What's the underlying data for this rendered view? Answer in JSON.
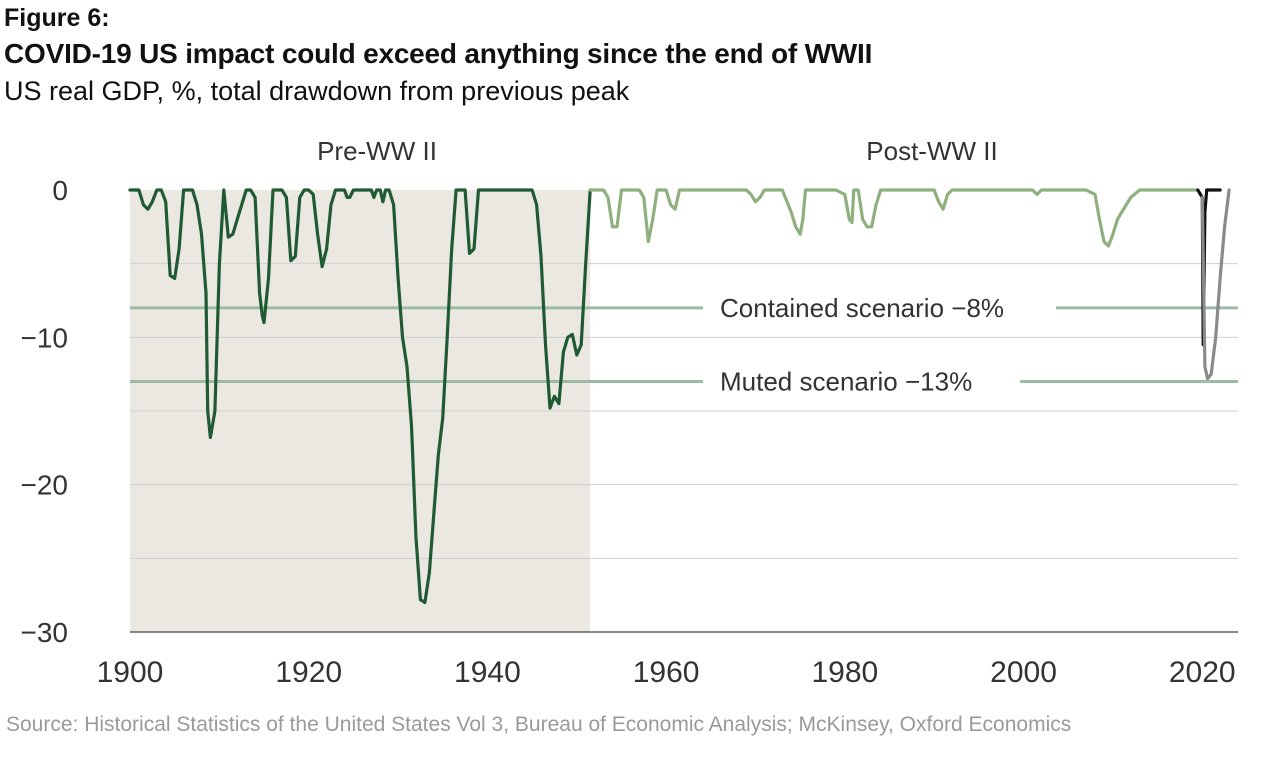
{
  "header": {
    "figure_label": "Figure 6:",
    "title": "COVID-19 US impact could exceed anything since the end of WWII",
    "subtitle": "US real GDP, %, total drawdown from previous peak"
  },
  "source": "Source: Historical Statistics of the United States Vol 3, Bureau of Economic Analysis; McKinsey, Oxford Economics",
  "colors": {
    "pre_ww2_line": "#1f5a33",
    "post_ww2_line": "#8fb07e",
    "shade": "#ebe8e2",
    "scenario_line": "#9dbba4",
    "recent_line": "#111111",
    "muted_path": "#8a8a8a",
    "grid": "#cfcfcf"
  },
  "chart_data": {
    "type": "line",
    "title": "COVID-19 US impact could exceed anything since the end of WWII",
    "ylabel": "US real GDP, %, total drawdown from previous peak",
    "xlim": [
      1900,
      2024
    ],
    "ylim": [
      -30,
      0
    ],
    "x_ticks": [
      "1900",
      "1920",
      "1940",
      "1960",
      "1980",
      "2000",
      "2020"
    ],
    "y_ticks": [
      "0",
      "−10",
      "−20",
      "−30"
    ],
    "grid": true,
    "regions": [
      {
        "label": "Pre-WW II",
        "from": 1900,
        "to": 1951.5,
        "shaded": true
      },
      {
        "label": "Post-WW II",
        "from": 1951.5,
        "to": 2024,
        "shaded": false
      }
    ],
    "reference_lines": [
      {
        "label": "Contained scenario −8%",
        "value": -8
      },
      {
        "label": "Muted scenario −13%",
        "value": -13
      }
    ],
    "series": [
      {
        "segment": "pre_ww2",
        "x": [
          1900,
          1901,
          1901.5,
          1902,
          1902.5,
          1903,
          1903.5,
          1904,
          1904.5,
          1905,
          1905.5,
          1906,
          1907,
          1907.5,
          1908,
          1908.5,
          1908.7,
          1909,
          1909.5,
          1910,
          1910.5,
          1911,
          1911.5,
          1912,
          1913,
          1913.5,
          1914,
          1914.5,
          1914.8,
          1915,
          1915.5,
          1916,
          1917,
          1917.5,
          1918,
          1918.5,
          1919,
          1919.5,
          1920,
          1920.5,
          1921,
          1921.5,
          1922,
          1922.5,
          1923,
          1924,
          1924.3,
          1924.6,
          1925,
          1926,
          1927,
          1927.3,
          1927.6,
          1928,
          1928.3,
          1928.6,
          1929,
          1929.5,
          1930,
          1930.5,
          1931,
          1931.5,
          1932,
          1932.5,
          1933,
          1933.5,
          1934,
          1934.5,
          1935,
          1935.5,
          1936,
          1936.5,
          1937,
          1937.5,
          1938,
          1938.5,
          1939,
          1940,
          1941,
          1942,
          1943,
          1944,
          1945,
          1945.5,
          1946,
          1946.5,
          1947,
          1947.5,
          1948,
          1948.5,
          1949,
          1949.5,
          1950,
          1950.5,
          1951,
          1951.5
        ],
        "values": [
          0,
          0,
          -1,
          -1.3,
          -0.8,
          0,
          0,
          -0.8,
          -5.8,
          -6,
          -4,
          0,
          0,
          -1,
          -3,
          -7,
          -15,
          -16.8,
          -15,
          -5,
          0,
          -3.2,
          -3,
          -2,
          0,
          0,
          -0.5,
          -7,
          -8.5,
          -9,
          -6,
          0,
          0,
          -0.5,
          -4.8,
          -4.5,
          -0.5,
          0,
          0,
          -0.3,
          -3,
          -5.2,
          -4,
          -1,
          0,
          0,
          -0.5,
          -0.5,
          0,
          0,
          0,
          -0.5,
          0,
          0,
          -0.8,
          0,
          0,
          -1,
          -6,
          -10,
          -12,
          -16,
          -23.5,
          -27.8,
          -28,
          -26,
          -22,
          -18,
          -15.5,
          -10,
          -4,
          0,
          0,
          0,
          -4.3,
          -4,
          0,
          0,
          0,
          0,
          0,
          0,
          0,
          -1,
          -4.5,
          -10.5,
          -14.8,
          -14,
          -14.5,
          -11,
          -10,
          -9.8,
          -11.2,
          -10.5,
          -5,
          0
        ]
      },
      {
        "segment": "post_ww2",
        "x": [
          1951.5,
          1953,
          1953.5,
          1954,
          1954.5,
          1955,
          1957,
          1957.5,
          1958,
          1958.5,
          1959,
          1960,
          1960.5,
          1961,
          1961.5,
          1962,
          1969,
          1969.5,
          1970,
          1970.5,
          1971,
          1973,
          1974,
          1974.5,
          1975,
          1975.3,
          1975.6,
          1976,
          1979,
          1980,
          1980.5,
          1980.8,
          1981,
          1981.5,
          1982,
          1982.5,
          1983,
          1983.5,
          1984,
          1990,
          1990.5,
          1991,
          1991.5,
          1992,
          2001,
          2001.5,
          2002,
          2007,
          2008,
          2008.5,
          2009,
          2009.5,
          2010,
          2010.5,
          2011,
          2011.5,
          2012,
          2013,
          2019.5
        ],
        "values": [
          0,
          0,
          -0.5,
          -2.5,
          -2.5,
          0,
          0,
          -0.5,
          -3.5,
          -2,
          0,
          0,
          -1,
          -1.3,
          0,
          0,
          0,
          -0.3,
          -0.8,
          -0.5,
          0,
          0,
          -1.5,
          -2.5,
          -3,
          -2,
          0,
          0,
          0,
          -0.3,
          -2,
          -2.2,
          0,
          0,
          -2,
          -2.5,
          -2.5,
          -1,
          0,
          0,
          -0.8,
          -1.3,
          -0.3,
          0,
          0,
          -0.3,
          0,
          0,
          -0.3,
          -2,
          -3.5,
          -3.8,
          -3,
          -2,
          -1.5,
          -1,
          -0.5,
          0,
          0
        ]
      },
      {
        "segment": "covid_recent",
        "x": [
          2019.5,
          2020,
          2020.1,
          2020.3,
          2020.5,
          2021,
          2022
        ],
        "values": [
          0,
          -0.5,
          -10.5,
          -1.5,
          0,
          0,
          0
        ]
      },
      {
        "segment": "muted_scenario_path",
        "x": [
          2020,
          2020.3,
          2020.6,
          2021,
          2021.5,
          2022,
          2022.5,
          2023
        ],
        "values": [
          -0.5,
          -12,
          -12.8,
          -12.5,
          -10,
          -6,
          -2.5,
          0
        ]
      }
    ]
  }
}
